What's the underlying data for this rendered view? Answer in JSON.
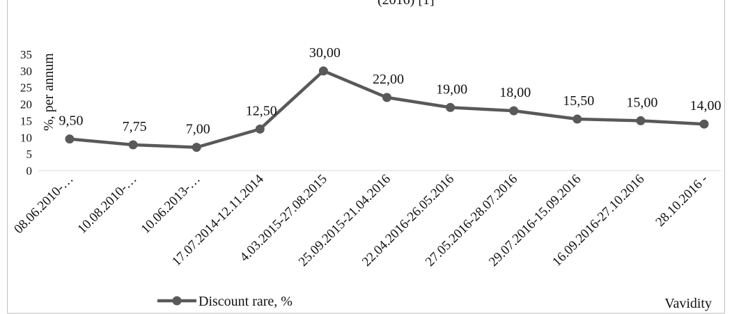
{
  "title_fragment": "(2016) [1]",
  "chart_data": {
    "type": "line",
    "categories": [
      "08.06.2010-…",
      "10.08.2010-…",
      "10.06.2013-…",
      "17.07.2014-12.11.2014",
      "4.03.2015-27.08.2015",
      "25.09.2015-21.04.2016",
      "22.04.2016-26.05.2016",
      "27.05.2016-28.07.2016",
      "29.07.2016-15.09.2016",
      "16.09.2016-27.10.2016",
      "28.10.2016 -"
    ],
    "series": [
      {
        "name": "Discount rare, %",
        "values": [
          9.5,
          7.75,
          7.0,
          12.5,
          30.0,
          22.0,
          19.0,
          18.0,
          15.5,
          15.0,
          14.0
        ],
        "labels": [
          "9,50",
          "7,75",
          "7,00",
          "12,50",
          "30,00",
          "22,00",
          "19,00",
          "18,00",
          "15,50",
          "15,00",
          "14,00"
        ]
      }
    ],
    "yticks": [
      "0",
      "5",
      "10",
      "15",
      "20",
      "25",
      "30",
      "35"
    ],
    "ylim": [
      0,
      35
    ],
    "ylabel": "%, per annum",
    "xlabel": "Vavidity",
    "grid": false,
    "legend": "bottom-left",
    "colors": {
      "series": "#595959",
      "axis": "#d9d9d9",
      "frame": "#bfbfbf",
      "text": "#111111"
    }
  }
}
